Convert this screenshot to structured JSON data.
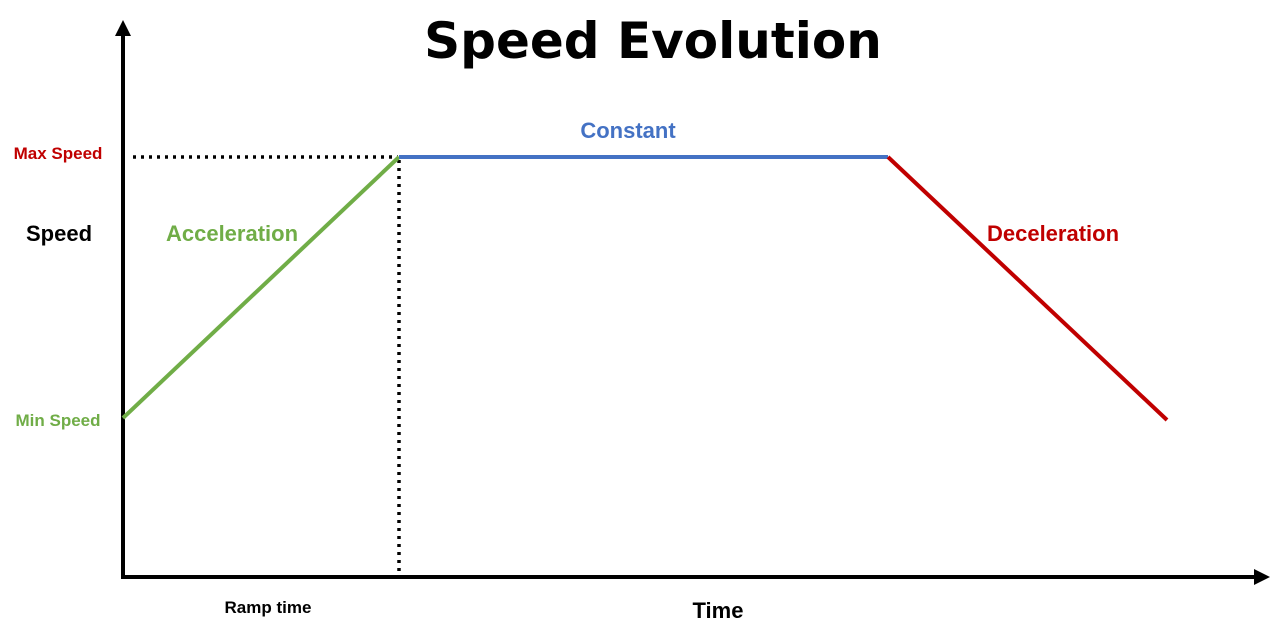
{
  "title": "Speed Evolution",
  "axes": {
    "y_label": "Speed",
    "x_label": "Time"
  },
  "markers": {
    "max_speed": "Max Speed",
    "min_speed": "Min Speed",
    "ramp_time": "Ramp time"
  },
  "phases": {
    "acceleration": "Acceleration",
    "constant": "Constant",
    "deceleration": "Deceleration"
  },
  "colors": {
    "acceleration": "#70ad47",
    "constant": "#4472c4",
    "deceleration": "#c00000",
    "axis": "#000000"
  }
}
